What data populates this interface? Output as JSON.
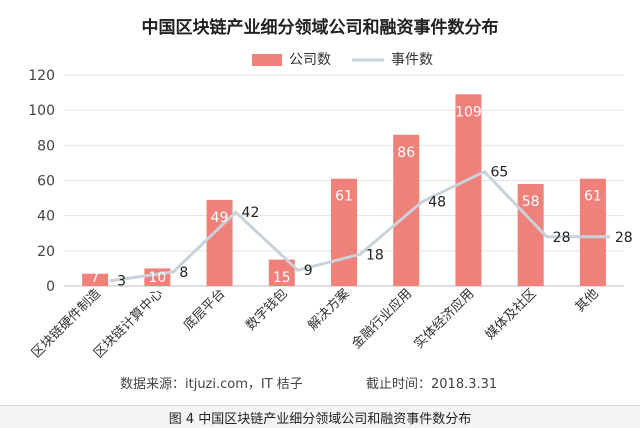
{
  "chart_data": {
    "type": "bar",
    "title": "中国区块链产业细分领域公司和融资事件数分布",
    "categories": [
      "区块链硬件制造",
      "区块链计算中心",
      "底层平台",
      "数字钱包",
      "解决方案",
      "金融行业应用",
      "实体经济应用",
      "媒体及社区",
      "其他"
    ],
    "series": [
      {
        "name": "公司数",
        "type": "bar",
        "color": "#f0807a",
        "values": [
          7,
          10,
          49,
          15,
          61,
          86,
          109,
          58,
          61
        ]
      },
      {
        "name": "事件数",
        "type": "line",
        "color": "#c8d2d8",
        "values": [
          3,
          8,
          42,
          9,
          18,
          48,
          65,
          28,
          28
        ]
      }
    ],
    "ylim": [
      0,
      120
    ],
    "yticks": [
      0,
      20,
      40,
      60,
      80,
      100,
      120
    ],
    "xlabel": "",
    "ylabel": "",
    "grid": true,
    "legend": "top"
  },
  "source_text": "数据来源：itjuzi.com，IT 桔子",
  "deadline_text": "截止时间：2018.3.31",
  "caption": "图 4  中国区块链产业细分领域公司和融资事件数分布"
}
